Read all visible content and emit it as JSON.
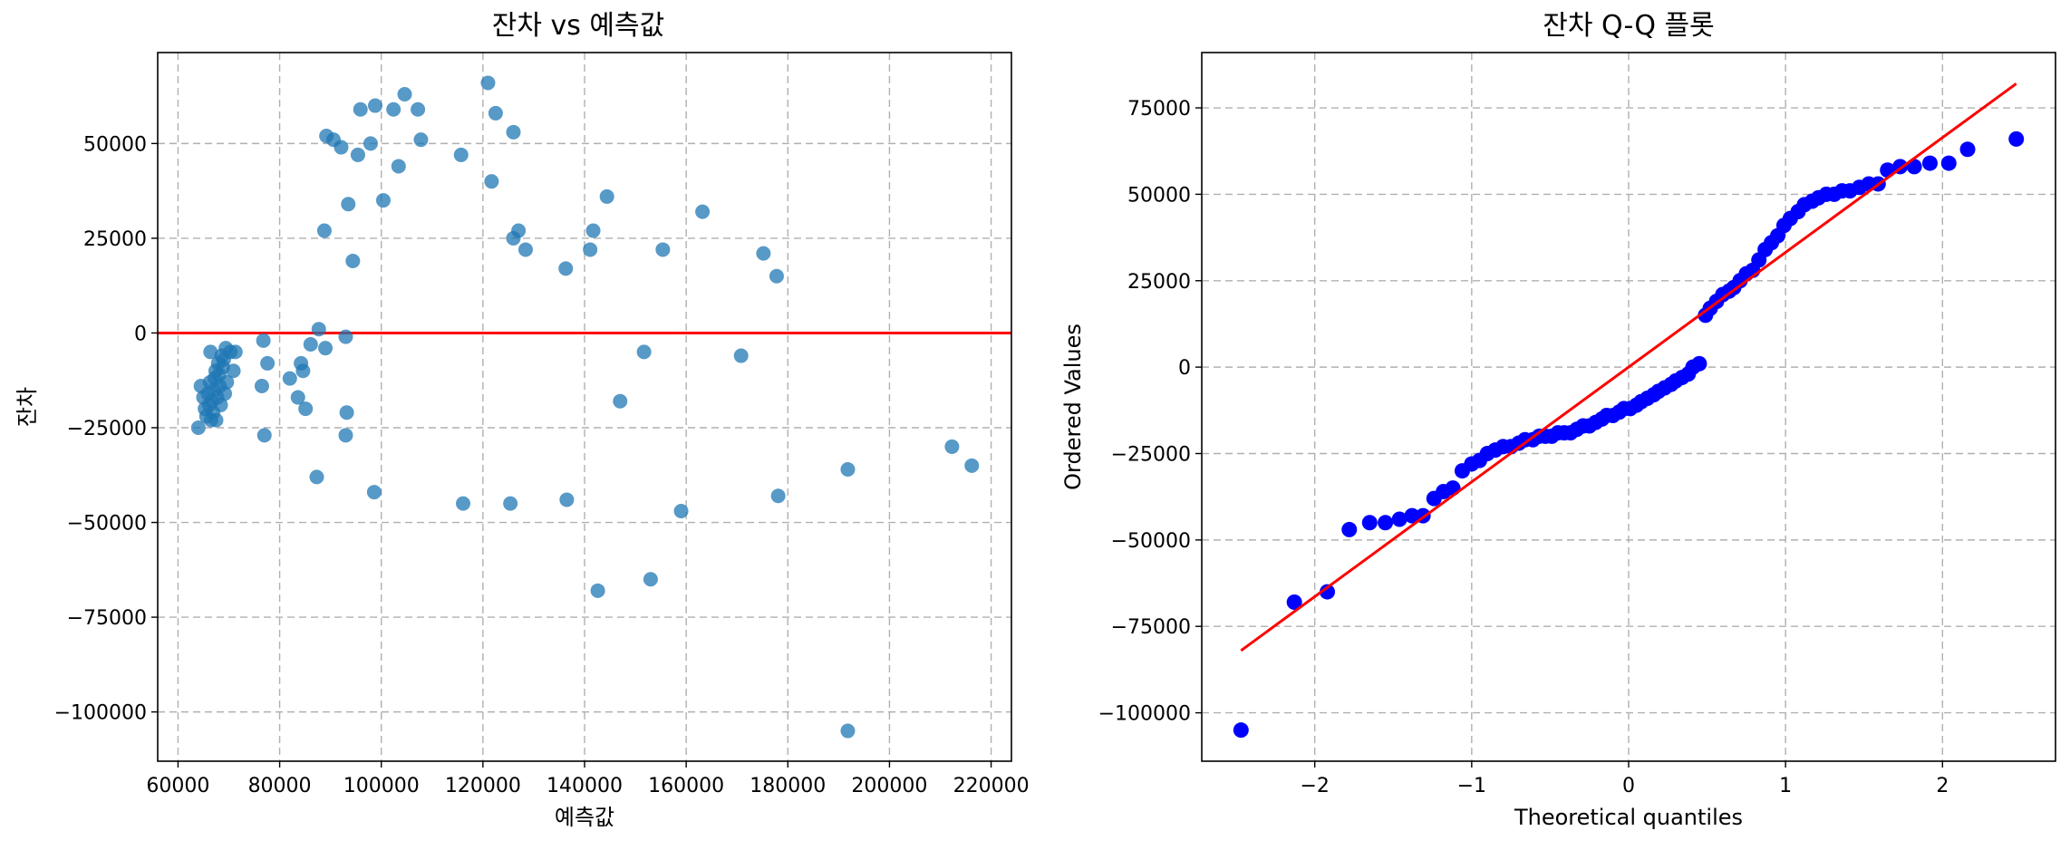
{
  "chart_data": [
    {
      "type": "scatter",
      "title": "잔차 vs 예측값",
      "xlabel": "예측값",
      "ylabel": "잔차",
      "xlim": [
        56000,
        224000
      ],
      "ylim": [
        -113000,
        74000
      ],
      "xticks": [
        60000,
        80000,
        100000,
        120000,
        140000,
        160000,
        180000,
        200000,
        220000
      ],
      "yticks": [
        -100000,
        -75000,
        -50000,
        -25000,
        0,
        25000,
        50000
      ],
      "grid": true,
      "marker_color": "#1f77b4",
      "reference_line": {
        "y": 0,
        "color": "#ff0000"
      },
      "points": [
        [
          64000,
          -25000
        ],
        [
          64500,
          -14000
        ],
        [
          65000,
          -17000
        ],
        [
          65300,
          -20000
        ],
        [
          65600,
          -22000
        ],
        [
          65900,
          -16000
        ],
        [
          66100,
          -19000
        ],
        [
          66300,
          -13000
        ],
        [
          66400,
          -5000
        ],
        [
          66500,
          -23000
        ],
        [
          66700,
          -18000
        ],
        [
          66900,
          -21000
        ],
        [
          67100,
          -15000
        ],
        [
          67200,
          -12000
        ],
        [
          67400,
          -10000
        ],
        [
          67500,
          -23000
        ],
        [
          67700,
          -17000
        ],
        [
          67900,
          -8000
        ],
        [
          68100,
          -11000
        ],
        [
          68200,
          -14000
        ],
        [
          68400,
          -19000
        ],
        [
          68600,
          -6000
        ],
        [
          68800,
          -9000
        ],
        [
          69000,
          -7000
        ],
        [
          69200,
          -16000
        ],
        [
          69400,
          -4000
        ],
        [
          69600,
          -13000
        ],
        [
          70300,
          -5000
        ],
        [
          70900,
          -10000
        ],
        [
          71300,
          -5000
        ],
        [
          76500,
          -14000
        ],
        [
          76800,
          -2000
        ],
        [
          77000,
          -27000
        ],
        [
          77600,
          -8000
        ],
        [
          82000,
          -12000
        ],
        [
          83600,
          -17000
        ],
        [
          84200,
          -8000
        ],
        [
          84600,
          -10000
        ],
        [
          85100,
          -20000
        ],
        [
          86100,
          -3000
        ],
        [
          87300,
          -38000
        ],
        [
          87700,
          1000
        ],
        [
          88800,
          27000
        ],
        [
          89000,
          -4000
        ],
        [
          89200,
          52000
        ],
        [
          90600,
          51000
        ],
        [
          92100,
          49000
        ],
        [
          93000,
          -1000
        ],
        [
          93200,
          -21000
        ],
        [
          93500,
          34000
        ],
        [
          93000,
          -27000
        ],
        [
          94400,
          19000
        ],
        [
          95400,
          47000
        ],
        [
          95900,
          59000
        ],
        [
          97900,
          50000
        ],
        [
          98600,
          -42000
        ],
        [
          98800,
          60000
        ],
        [
          100400,
          35000
        ],
        [
          102400,
          59000
        ],
        [
          103400,
          44000
        ],
        [
          104600,
          63000
        ],
        [
          107200,
          59000
        ],
        [
          107800,
          51000
        ],
        [
          115700,
          47000
        ],
        [
          116100,
          -45000
        ],
        [
          121000,
          66000
        ],
        [
          121700,
          40000
        ],
        [
          122500,
          58000
        ],
        [
          125400,
          -45000
        ],
        [
          126000,
          53000
        ],
        [
          126000,
          25000
        ],
        [
          127000,
          27000
        ],
        [
          128400,
          22000
        ],
        [
          136300,
          17000
        ],
        [
          136500,
          -44000
        ],
        [
          141100,
          22000
        ],
        [
          141700,
          27000
        ],
        [
          142600,
          -68000
        ],
        [
          144400,
          36000
        ],
        [
          147000,
          -18000
        ],
        [
          151700,
          -5000
        ],
        [
          153000,
          -65000
        ],
        [
          155400,
          22000
        ],
        [
          159000,
          -47000
        ],
        [
          163200,
          32000
        ],
        [
          170800,
          -6000
        ],
        [
          175200,
          21000
        ],
        [
          177800,
          15000
        ],
        [
          178100,
          -43000
        ],
        [
          191800,
          -36000
        ],
        [
          191800,
          -105000
        ],
        [
          212300,
          -30000
        ],
        [
          216200,
          -35000
        ]
      ]
    },
    {
      "type": "scatter",
      "title": "잔차 Q-Q 플롯",
      "xlabel": "Theoretical quantiles",
      "ylabel": "Ordered Values",
      "xlim": [
        -2.72,
        2.72
      ],
      "ylim": [
        -114000,
        91000
      ],
      "xticks": [
        -2,
        -1,
        0,
        1,
        2
      ],
      "yticks": [
        -100000,
        -75000,
        -50000,
        -25000,
        0,
        25000,
        50000,
        75000
      ],
      "grid": true,
      "marker_color": "#0000ff",
      "fit_line": {
        "x": [
          -2.47,
          2.47
        ],
        "y": [
          -82000,
          82000
        ],
        "color": "#ff0000"
      },
      "points": [
        [
          -2.47,
          -105000
        ],
        [
          -2.13,
          -68000
        ],
        [
          -1.92,
          -65000
        ],
        [
          -1.78,
          -47000
        ],
        [
          -1.65,
          -45000
        ],
        [
          -1.55,
          -45000
        ],
        [
          -1.46,
          -44000
        ],
        [
          -1.38,
          -43000
        ],
        [
          -1.31,
          -43000
        ],
        [
          -1.24,
          -38000
        ],
        [
          -1.18,
          -36000
        ],
        [
          -1.12,
          -35000
        ],
        [
          -1.06,
          -30000
        ],
        [
          -1.0,
          -28000
        ],
        [
          -0.95,
          -27000
        ],
        [
          -0.9,
          -25000
        ],
        [
          -0.85,
          -24000
        ],
        [
          -0.8,
          -23000
        ],
        [
          -0.75,
          -23000
        ],
        [
          -0.7,
          -22000
        ],
        [
          -0.66,
          -21000
        ],
        [
          -0.61,
          -21000
        ],
        [
          -0.57,
          -20000
        ],
        [
          -0.53,
          -20000
        ],
        [
          -0.49,
          -20000
        ],
        [
          -0.45,
          -19000
        ],
        [
          -0.41,
          -19000
        ],
        [
          -0.37,
          -19000
        ],
        [
          -0.33,
          -18000
        ],
        [
          -0.29,
          -17000
        ],
        [
          -0.25,
          -17000
        ],
        [
          -0.21,
          -16000
        ],
        [
          -0.17,
          -15000
        ],
        [
          -0.14,
          -14000
        ],
        [
          -0.1,
          -14000
        ],
        [
          -0.06,
          -13000
        ],
        [
          -0.03,
          -12000
        ],
        [
          0.01,
          -12000
        ],
        [
          0.05,
          -11000
        ],
        [
          0.08,
          -10000
        ],
        [
          0.12,
          -9000
        ],
        [
          0.16,
          -8000
        ],
        [
          0.19,
          -7000
        ],
        [
          0.23,
          -6000
        ],
        [
          0.27,
          -5000
        ],
        [
          0.3,
          -4000
        ],
        [
          0.34,
          -3000
        ],
        [
          0.38,
          -2000
        ],
        [
          0.41,
          0
        ],
        [
          0.45,
          1000
        ],
        [
          0.49,
          15000
        ],
        [
          0.52,
          17000
        ],
        [
          0.56,
          19000
        ],
        [
          0.6,
          21000
        ],
        [
          0.64,
          22000
        ],
        [
          0.67,
          23000
        ],
        [
          0.71,
          25000
        ],
        [
          0.75,
          27000
        ],
        [
          0.79,
          28000
        ],
        [
          0.83,
          31000
        ],
        [
          0.87,
          34000
        ],
        [
          0.91,
          36000
        ],
        [
          0.95,
          38000
        ],
        [
          0.99,
          41000
        ],
        [
          1.03,
          43000
        ],
        [
          1.08,
          45000
        ],
        [
          1.12,
          47000
        ],
        [
          1.17,
          48000
        ],
        [
          1.21,
          49000
        ],
        [
          1.26,
          50000
        ],
        [
          1.31,
          50000
        ],
        [
          1.36,
          51000
        ],
        [
          1.41,
          51000
        ],
        [
          1.47,
          52000
        ],
        [
          1.53,
          53000
        ],
        [
          1.59,
          53000
        ],
        [
          1.65,
          57000
        ],
        [
          1.73,
          58000
        ],
        [
          1.82,
          58000
        ],
        [
          1.92,
          59000
        ],
        [
          2.04,
          59000
        ],
        [
          2.16,
          63000
        ],
        [
          2.47,
          66000
        ]
      ]
    }
  ]
}
